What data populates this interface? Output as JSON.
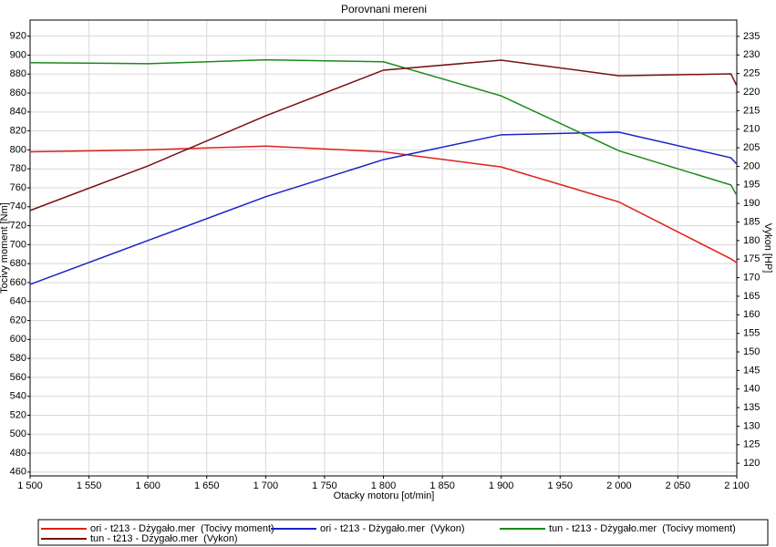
{
  "chart_data": {
    "type": "line",
    "title": "Porovnani mereni",
    "x_label": "Otacky motoru [ot/min]",
    "y_label": "Tocivy moment [Nm]",
    "y2_label": "Vykon [HP]",
    "x": [
      1500,
      1600,
      1700,
      1800,
      1900,
      2000,
      2095,
      2100
    ],
    "xlim": [
      1500,
      2100
    ],
    "xticks": [
      {
        "value": 1500,
        "label": "1 500"
      },
      {
        "value": 1550,
        "label": "1 550"
      },
      {
        "value": 1600,
        "label": "1 600"
      },
      {
        "value": 1650,
        "label": "1 650"
      },
      {
        "value": 1700,
        "label": "1 700"
      },
      {
        "value": 1750,
        "label": "1 750"
      },
      {
        "value": 1800,
        "label": "1 800"
      },
      {
        "value": 1850,
        "label": "1 850"
      },
      {
        "value": 1900,
        "label": "1 900"
      },
      {
        "value": 1950,
        "label": "1 950"
      },
      {
        "value": 2000,
        "label": "2 000"
      },
      {
        "value": 2050,
        "label": "2 050"
      },
      {
        "value": 2100,
        "label": "2 100"
      }
    ],
    "ylim": [
      456,
      937
    ],
    "yticks": [
      460,
      480,
      500,
      520,
      540,
      560,
      580,
      600,
      620,
      640,
      660,
      680,
      700,
      720,
      740,
      760,
      780,
      800,
      820,
      840,
      860,
      880,
      900,
      920
    ],
    "y2lim": [
      116.6,
      239.4
    ],
    "y2ticks": [
      120,
      125,
      130,
      135,
      140,
      145,
      150,
      155,
      160,
      165,
      170,
      175,
      180,
      185,
      190,
      195,
      200,
      205,
      210,
      215,
      220,
      225,
      230,
      235
    ],
    "grid": true,
    "legend": "bottom",
    "series": [
      {
        "name": "ori - t213 - Dżygało.mer  (Tocivy moment)",
        "color": "#e0201a",
        "values": [
          798,
          800,
          804,
          798,
          782,
          745,
          685,
          681
        ]
      },
      {
        "name": "ori - t213 - Dżygało.mer  (Vykon)",
        "color": "#1a22c8",
        "axis": "y2",
        "values": [
          168.2,
          180,
          191.8,
          201.8,
          208.5,
          209.2,
          202.3,
          200.6
        ]
      },
      {
        "name": "tun - t213 - Dżygało.mer  (Tocivy moment)",
        "color": "#1a8a1a",
        "values": [
          892,
          891,
          895,
          893,
          857,
          799,
          763,
          752
        ]
      },
      {
        "name": "tun - t213 - Dżygało.mer  (Vykon)",
        "color": "#7a1010",
        "axis": "y2",
        "values": [
          188.1,
          200.1,
          213.6,
          225.9,
          228.6,
          224.4,
          224.9,
          221.7
        ]
      }
    ]
  }
}
